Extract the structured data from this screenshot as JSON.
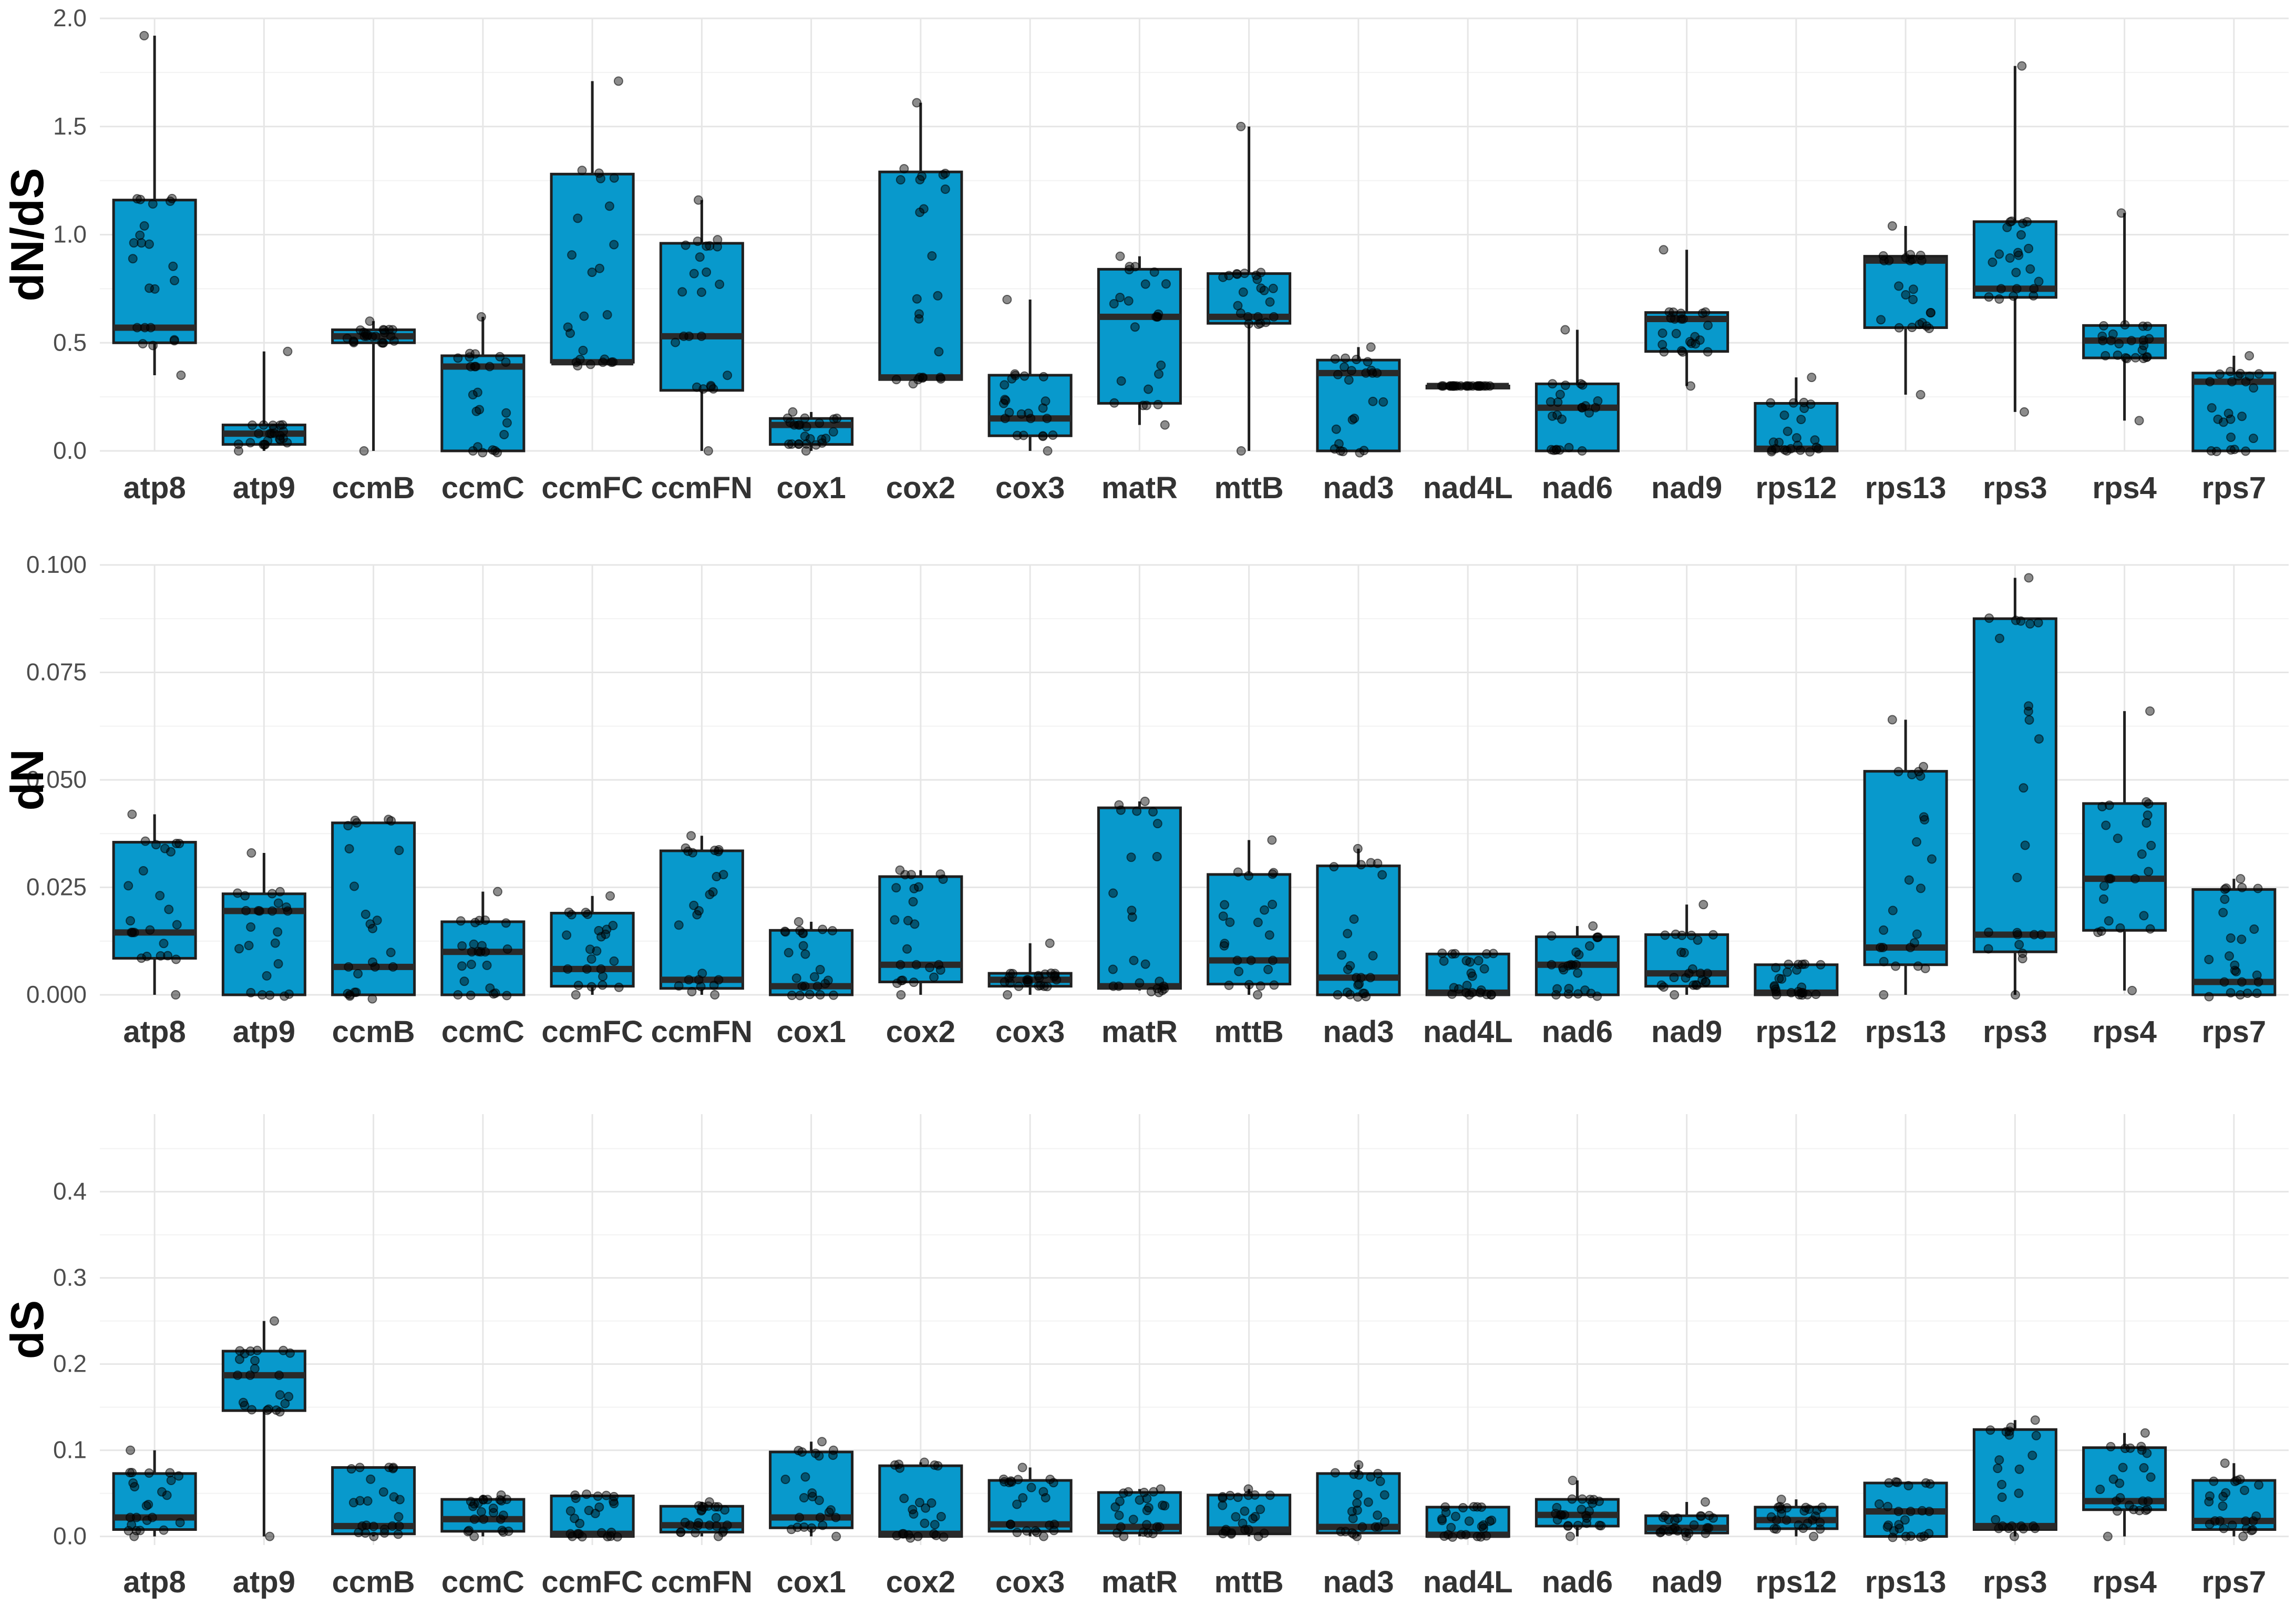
{
  "chart_data": [
    {
      "type": "box",
      "ylabel": "dN/dS",
      "ylim": [
        0.0,
        2.0
      ],
      "yticks": [
        "0.0",
        "0.5",
        "1.0",
        "1.5",
        "2.0"
      ],
      "categories": [
        "atp8",
        "atp9",
        "ccmB",
        "ccmC",
        "ccmFC",
        "ccmFN",
        "cox1",
        "cox2",
        "cox3",
        "matR",
        "mttB",
        "nad3",
        "nad4L",
        "nad6",
        "nad9",
        "rps12",
        "rps13",
        "rps3",
        "rps4",
        "rps7"
      ],
      "boxes": [
        {
          "min": 0.35,
          "q1": 0.5,
          "median": 0.57,
          "q3": 1.16,
          "max": 1.92
        },
        {
          "min": 0.0,
          "q1": 0.03,
          "median": 0.08,
          "q3": 0.12,
          "max": 0.46
        },
        {
          "min": 0.0,
          "q1": 0.5,
          "median": 0.53,
          "q3": 0.56,
          "max": 0.6
        },
        {
          "min": 0.0,
          "q1": 0.0,
          "median": 0.39,
          "q3": 0.44,
          "max": 0.62
        },
        {
          "min": 0.4,
          "q1": 0.41,
          "median": 0.41,
          "q3": 1.28,
          "max": 1.71
        },
        {
          "min": 0.0,
          "q1": 0.28,
          "median": 0.53,
          "q3": 0.96,
          "max": 1.16
        },
        {
          "min": 0.0,
          "q1": 0.03,
          "median": 0.12,
          "q3": 0.15,
          "max": 0.18
        },
        {
          "min": 0.33,
          "q1": 0.33,
          "median": 0.34,
          "q3": 1.29,
          "max": 1.61
        },
        {
          "min": 0.0,
          "q1": 0.07,
          "median": 0.15,
          "q3": 0.35,
          "max": 0.7
        },
        {
          "min": 0.12,
          "q1": 0.22,
          "median": 0.62,
          "q3": 0.84,
          "max": 0.9
        },
        {
          "min": 0.0,
          "q1": 0.59,
          "median": 0.62,
          "q3": 0.82,
          "max": 1.5
        },
        {
          "min": 0.0,
          "q1": 0.0,
          "median": 0.36,
          "q3": 0.42,
          "max": 0.48
        },
        {
          "min": 0.3,
          "q1": 0.3,
          "median": 0.3,
          "q3": 0.3,
          "max": 0.3
        },
        {
          "min": 0.0,
          "q1": 0.0,
          "median": 0.2,
          "q3": 0.31,
          "max": 0.56
        },
        {
          "min": 0.3,
          "q1": 0.46,
          "median": 0.61,
          "q3": 0.64,
          "max": 0.93
        },
        {
          "min": 0.0,
          "q1": 0.0,
          "median": 0.01,
          "q3": 0.22,
          "max": 0.34
        },
        {
          "min": 0.26,
          "q1": 0.57,
          "median": 0.88,
          "q3": 0.9,
          "max": 1.04
        },
        {
          "min": 0.18,
          "q1": 0.71,
          "median": 0.75,
          "q3": 1.06,
          "max": 1.78
        },
        {
          "min": 0.14,
          "q1": 0.43,
          "median": 0.51,
          "q3": 0.58,
          "max": 1.1
        },
        {
          "min": 0.0,
          "q1": 0.0,
          "median": 0.32,
          "q3": 0.36,
          "max": 0.44
        }
      ]
    },
    {
      "type": "box",
      "ylabel": "dN",
      "ylim": [
        0.0,
        0.1
      ],
      "yticks": [
        "0.000",
        "0.025",
        "0.050",
        "0.075",
        "0.100"
      ],
      "categories": [
        "atp8",
        "atp9",
        "ccmB",
        "ccmC",
        "ccmFC",
        "ccmFN",
        "cox1",
        "cox2",
        "cox3",
        "matR",
        "mttB",
        "nad3",
        "nad4L",
        "nad6",
        "nad9",
        "rps12",
        "rps13",
        "rps3",
        "rps4",
        "rps7"
      ],
      "boxes": [
        {
          "min": 0.0,
          "q1": 0.0085,
          "median": 0.0145,
          "q3": 0.0355,
          "max": 0.042
        },
        {
          "min": 0.0,
          "q1": 0.0,
          "median": 0.0195,
          "q3": 0.0235,
          "max": 0.033
        },
        {
          "min": 0.0,
          "q1": 0.0,
          "median": 0.0065,
          "q3": 0.04,
          "max": 0.04
        },
        {
          "min": 0.0,
          "q1": 0.0,
          "median": 0.01,
          "q3": 0.017,
          "max": 0.024
        },
        {
          "min": 0.0,
          "q1": 0.002,
          "median": 0.006,
          "q3": 0.019,
          "max": 0.023
        },
        {
          "min": 0.0,
          "q1": 0.0015,
          "median": 0.0035,
          "q3": 0.0335,
          "max": 0.037
        },
        {
          "min": 0.0,
          "q1": 0.0,
          "median": 0.002,
          "q3": 0.015,
          "max": 0.017
        },
        {
          "min": 0.0,
          "q1": 0.003,
          "median": 0.007,
          "q3": 0.0275,
          "max": 0.029
        },
        {
          "min": 0.0,
          "q1": 0.002,
          "median": 0.0035,
          "q3": 0.005,
          "max": 0.012
        },
        {
          "min": 0.001,
          "q1": 0.0015,
          "median": 0.002,
          "q3": 0.0435,
          "max": 0.045
        },
        {
          "min": 0.0,
          "q1": 0.0025,
          "median": 0.008,
          "q3": 0.028,
          "max": 0.036
        },
        {
          "min": 0.0,
          "q1": 0.0,
          "median": 0.004,
          "q3": 0.03,
          "max": 0.034
        },
        {
          "min": 0.0,
          "q1": 0.0,
          "median": 0.0005,
          "q3": 0.0095,
          "max": 0.0095
        },
        {
          "min": 0.0,
          "q1": 0.0,
          "median": 0.007,
          "q3": 0.0135,
          "max": 0.016
        },
        {
          "min": 0.0,
          "q1": 0.002,
          "median": 0.005,
          "q3": 0.014,
          "max": 0.021
        },
        {
          "min": 0.0,
          "q1": 0.0,
          "median": 0.0005,
          "q3": 0.007,
          "max": 0.007
        },
        {
          "min": 0.0,
          "q1": 0.007,
          "median": 0.011,
          "q3": 0.052,
          "max": 0.064
        },
        {
          "min": 0.0,
          "q1": 0.01,
          "median": 0.014,
          "q3": 0.0875,
          "max": 0.097
        },
        {
          "min": 0.001,
          "q1": 0.015,
          "median": 0.027,
          "q3": 0.0445,
          "max": 0.066
        },
        {
          "min": 0.0,
          "q1": 0.0,
          "median": 0.003,
          "q3": 0.0245,
          "max": 0.027
        }
      ]
    },
    {
      "type": "box",
      "ylabel": "dS",
      "ylim": [
        -0.01,
        0.49
      ],
      "yticks": [
        "0.0",
        "0.1",
        "0.2",
        "0.3",
        "0.4"
      ],
      "categories": [
        "atp8",
        "atp9",
        "ccmB",
        "ccmC",
        "ccmFC",
        "ccmFN",
        "cox1",
        "cox2",
        "cox3",
        "matR",
        "mttB",
        "nad3",
        "nad4L",
        "nad6",
        "nad9",
        "rps12",
        "rps13",
        "rps3",
        "rps4",
        "rps7"
      ],
      "boxes": [
        {
          "min": 0.0,
          "q1": 0.008,
          "median": 0.022,
          "q3": 0.073,
          "max": 0.1
        },
        {
          "min": 0.0,
          "q1": 0.146,
          "median": 0.187,
          "q3": 0.215,
          "max": 0.25
        },
        {
          "min": 0.0,
          "q1": 0.003,
          "median": 0.012,
          "q3": 0.08,
          "max": 0.08
        },
        {
          "min": 0.0,
          "q1": 0.006,
          "median": 0.02,
          "q3": 0.043,
          "max": 0.048
        },
        {
          "min": 0.0,
          "q1": 0.0,
          "median": 0.003,
          "q3": 0.047,
          "max": 0.049
        },
        {
          "min": 0.0,
          "q1": 0.005,
          "median": 0.013,
          "q3": 0.035,
          "max": 0.04
        },
        {
          "min": 0.0,
          "q1": 0.01,
          "median": 0.022,
          "q3": 0.098,
          "max": 0.11
        },
        {
          "min": 0.0,
          "q1": 0.0,
          "median": 0.003,
          "q3": 0.082,
          "max": 0.086
        },
        {
          "min": 0.0,
          "q1": 0.006,
          "median": 0.014,
          "q3": 0.065,
          "max": 0.08
        },
        {
          "min": 0.0,
          "q1": 0.004,
          "median": 0.011,
          "q3": 0.051,
          "max": 0.055
        },
        {
          "min": 0.0,
          "q1": 0.003,
          "median": 0.008,
          "q3": 0.048,
          "max": 0.055
        },
        {
          "min": 0.0,
          "q1": 0.004,
          "median": 0.011,
          "q3": 0.073,
          "max": 0.083
        },
        {
          "min": 0.0,
          "q1": 0.0,
          "median": 0.002,
          "q3": 0.034,
          "max": 0.034
        },
        {
          "min": 0.0,
          "q1": 0.012,
          "median": 0.025,
          "q3": 0.043,
          "max": 0.065
        },
        {
          "min": 0.0,
          "q1": 0.004,
          "median": 0.01,
          "q3": 0.024,
          "max": 0.04
        },
        {
          "min": 0.0,
          "q1": 0.009,
          "median": 0.019,
          "q3": 0.034,
          "max": 0.043
        },
        {
          "min": 0.0,
          "q1": 0.0,
          "median": 0.029,
          "q3": 0.062,
          "max": 0.062
        },
        {
          "min": 0.0,
          "q1": 0.008,
          "median": 0.012,
          "q3": 0.124,
          "max": 0.135
        },
        {
          "min": 0.0,
          "q1": 0.031,
          "median": 0.041,
          "q3": 0.103,
          "max": 0.12
        },
        {
          "min": 0.0,
          "q1": 0.008,
          "median": 0.018,
          "q3": 0.065,
          "max": 0.085
        }
      ]
    }
  ],
  "style": {
    "box_fill": "#0899CC",
    "box_stroke": "#1f1f1f",
    "point_color": "#000000",
    "grid_color": "#e6e6e6",
    "grid": true,
    "legend": "none"
  }
}
